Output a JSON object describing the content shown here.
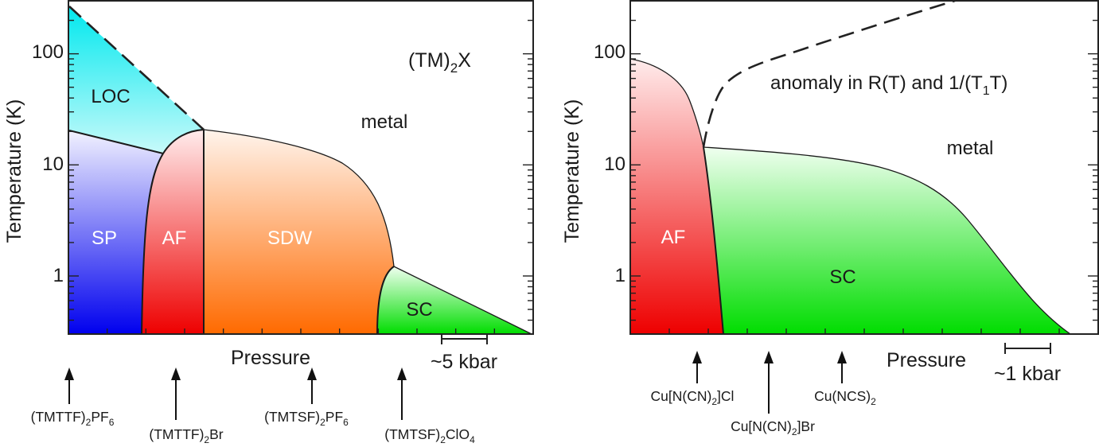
{
  "chart_data": [
    {
      "type": "phase-diagram",
      "title": "(TM)2X",
      "title_parts": [
        "(TM)",
        "2",
        "X"
      ],
      "xlabel": "Pressure",
      "ylabel": "Temperature (K)",
      "yscale": "log",
      "ylim": [
        0.3,
        300
      ],
      "y_ticks": [
        {
          "value": 1,
          "label": "1"
        },
        {
          "value": 10,
          "label": "10"
        },
        {
          "value": 100,
          "label": "100"
        }
      ],
      "scale_bar": {
        "label": "~5 kbar"
      },
      "phases": [
        {
          "label": "LOC",
          "color_top": "#00e8ee"
        },
        {
          "label": "SP",
          "color_bottom": "#0000ee"
        },
        {
          "label": "AF",
          "color_bottom": "#ee0000"
        },
        {
          "label": "SDW",
          "color_bottom": "#ff6a00"
        },
        {
          "label": "SC",
          "color_bottom": "#00dd00"
        },
        {
          "label": "metal"
        }
      ],
      "compounds": [
        {
          "name": "(TMTTF)2PF6",
          "parts": [
            "(TMTTF)",
            "2",
            "PF",
            "6"
          ]
        },
        {
          "name": "(TMTTF)2Br",
          "parts": [
            "(TMTTF)",
            "2",
            "Br"
          ]
        },
        {
          "name": "(TMTSF)2PF6",
          "parts": [
            "(TMTSF)",
            "2",
            "PF",
            "6"
          ]
        },
        {
          "name": "(TMTSF)2ClO4",
          "parts": [
            "(TMTSF)",
            "2",
            "ClO",
            "4"
          ]
        }
      ]
    },
    {
      "type": "phase-diagram",
      "xlabel": "Pressure",
      "ylabel": "Temperature (K)",
      "yscale": "log",
      "ylim": [
        0.3,
        300
      ],
      "y_ticks": [
        {
          "value": 1,
          "label": "1"
        },
        {
          "value": 10,
          "label": "10"
        },
        {
          "value": 100,
          "label": "100"
        }
      ],
      "scale_bar": {
        "label": "~1 kbar"
      },
      "annotation_parts": [
        "anomaly in R(T) and 1/(T",
        "1",
        "T)"
      ],
      "phases": [
        {
          "label": "AF",
          "color_bottom": "#ee0000"
        },
        {
          "label": "SC",
          "color_bottom": "#00dd00"
        },
        {
          "label": "metal"
        }
      ],
      "compounds": [
        {
          "name": "Cu[N(CN)2]Cl",
          "parts": [
            "Cu[N(CN)",
            "2",
            "]Cl"
          ]
        },
        {
          "name": "Cu[N(CN)2]Br",
          "parts": [
            "Cu[N(CN)",
            "2",
            "]Br"
          ]
        },
        {
          "name": "Cu(NCS)2",
          "parts": [
            "Cu(NCS)",
            "2"
          ]
        }
      ]
    }
  ]
}
